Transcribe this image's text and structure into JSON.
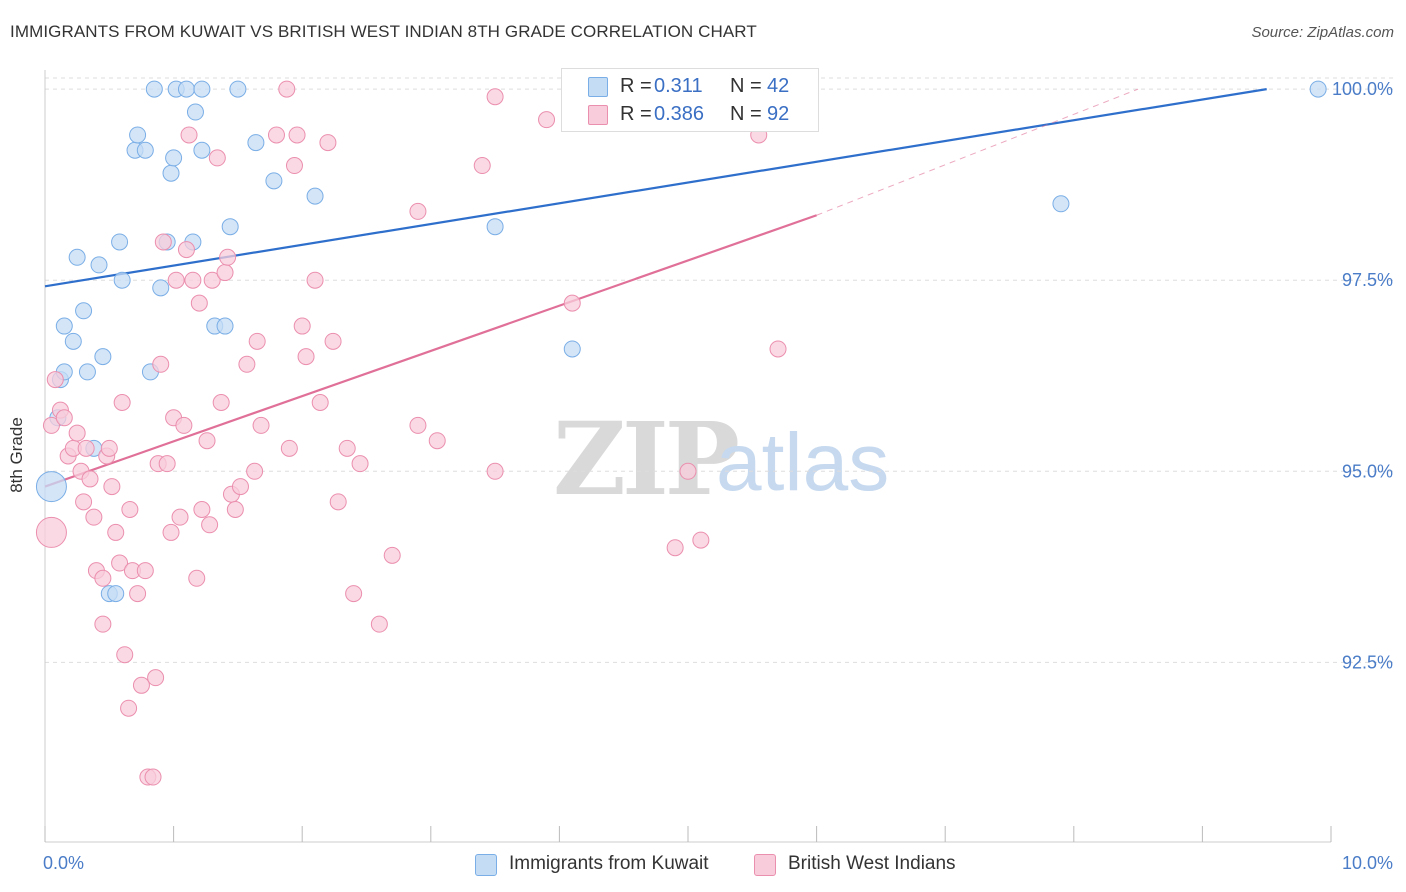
{
  "title": "IMMIGRANTS FROM KUWAIT VS BRITISH WEST INDIAN 8TH GRADE CORRELATION CHART",
  "source": "Source: ZipAtlas.com",
  "watermark": {
    "zip": "ZIP",
    "atlas": "atlas"
  },
  "colors": {
    "blue": "#7aaee6",
    "blue_fill": "#c5dcf5",
    "blue_line": "#2f6fcc",
    "pink": "#eb8fae",
    "pink_fill": "#f8ccdb",
    "pink_line": "#e07098",
    "tick_text": "#4a7cc7",
    "grid": "#dddddd"
  },
  "legend": {
    "rows": [
      {
        "r_label": "R =",
        "r_value": "0.311",
        "n_label": "N =",
        "n_value": "42"
      },
      {
        "r_label": "R =",
        "r_value": "0.386",
        "n_label": "N =",
        "n_value": "92"
      }
    ]
  },
  "bottom_legend": [
    "Immigrants from Kuwait",
    "British West Indians"
  ],
  "chart_data": {
    "type": "scatter",
    "title": "IMMIGRANTS FROM KUWAIT VS BRITISH WEST INDIAN 8TH GRADE CORRELATION CHART",
    "xlabel": "",
    "ylabel": "8th Grade",
    "xlim": [
      0,
      10
    ],
    "ylim": [
      90.15,
      100.25
    ],
    "x_tick_labels": [
      "0.0%",
      "10.0%"
    ],
    "y_ticks": [
      92.5,
      95.0,
      97.5,
      100.0
    ],
    "y_tick_labels": [
      "92.5%",
      "95.0%",
      "97.5%",
      "100.0%"
    ],
    "grid": "horizontal dashed",
    "legend_placement": "top-center",
    "series": [
      {
        "name": "Immigrants from Kuwait",
        "color": "#7aaee6",
        "trend": {
          "x": [
            0,
            9.5
          ],
          "y": [
            97.42,
            100.0
          ]
        },
        "points": [
          [
            0.05,
            94.8
          ],
          [
            0.1,
            95.7
          ],
          [
            0.12,
            96.2
          ],
          [
            0.15,
            96.3
          ],
          [
            0.15,
            96.9
          ],
          [
            0.22,
            96.7
          ],
          [
            0.25,
            97.8
          ],
          [
            0.3,
            97.1
          ],
          [
            0.33,
            96.3
          ],
          [
            0.38,
            95.3
          ],
          [
            0.42,
            97.7
          ],
          [
            0.45,
            96.5
          ],
          [
            0.5,
            93.4
          ],
          [
            0.55,
            93.4
          ],
          [
            0.58,
            98.0
          ],
          [
            0.6,
            97.5
          ],
          [
            0.7,
            99.2
          ],
          [
            0.72,
            99.4
          ],
          [
            0.78,
            99.2
          ],
          [
            0.82,
            96.3
          ],
          [
            0.85,
            100.0
          ],
          [
            0.9,
            97.4
          ],
          [
            0.95,
            98.0
          ],
          [
            0.98,
            98.9
          ],
          [
            1.0,
            99.1
          ],
          [
            1.02,
            100.0
          ],
          [
            1.1,
            100.0
          ],
          [
            1.15,
            98.0
          ],
          [
            1.17,
            99.7
          ],
          [
            1.22,
            99.2
          ],
          [
            1.22,
            100.0
          ],
          [
            1.32,
            96.9
          ],
          [
            1.4,
            96.9
          ],
          [
            1.44,
            98.2
          ],
          [
            1.5,
            100.0
          ],
          [
            1.64,
            99.3
          ],
          [
            1.78,
            98.8
          ],
          [
            2.1,
            98.6
          ],
          [
            3.5,
            98.2
          ],
          [
            4.1,
            96.6
          ],
          [
            7.9,
            98.5
          ],
          [
            9.9,
            100.0
          ]
        ]
      },
      {
        "name": "British West Indians",
        "color": "#eb8fae",
        "trend": {
          "x": [
            0,
            6.0
          ],
          "y": [
            94.8,
            98.35
          ]
        },
        "trend_dashed": {
          "x": [
            6.0,
            8.5
          ],
          "y": [
            98.35,
            100.0
          ]
        },
        "points": [
          [
            0.05,
            94.2
          ],
          [
            0.05,
            95.6
          ],
          [
            0.08,
            96.2
          ],
          [
            0.12,
            95.8
          ],
          [
            0.15,
            95.7
          ],
          [
            0.18,
            95.2
          ],
          [
            0.22,
            95.3
          ],
          [
            0.25,
            95.5
          ],
          [
            0.28,
            95.0
          ],
          [
            0.3,
            94.6
          ],
          [
            0.32,
            95.3
          ],
          [
            0.35,
            94.9
          ],
          [
            0.38,
            94.4
          ],
          [
            0.4,
            93.7
          ],
          [
            0.45,
            93.6
          ],
          [
            0.45,
            93.0
          ],
          [
            0.48,
            95.2
          ],
          [
            0.5,
            95.3
          ],
          [
            0.52,
            94.8
          ],
          [
            0.55,
            94.2
          ],
          [
            0.58,
            93.8
          ],
          [
            0.6,
            95.9
          ],
          [
            0.62,
            92.6
          ],
          [
            0.65,
            91.9
          ],
          [
            0.66,
            94.5
          ],
          [
            0.68,
            93.7
          ],
          [
            0.72,
            93.4
          ],
          [
            0.75,
            92.2
          ],
          [
            0.78,
            93.7
          ],
          [
            0.8,
            91.0
          ],
          [
            0.84,
            91.0
          ],
          [
            0.86,
            92.3
          ],
          [
            0.88,
            95.1
          ],
          [
            0.9,
            96.4
          ],
          [
            0.92,
            98.0
          ],
          [
            0.95,
            95.1
          ],
          [
            0.98,
            94.2
          ],
          [
            1.0,
            95.7
          ],
          [
            1.02,
            97.5
          ],
          [
            1.05,
            94.4
          ],
          [
            1.08,
            95.6
          ],
          [
            1.1,
            97.9
          ],
          [
            1.12,
            99.4
          ],
          [
            1.15,
            97.5
          ],
          [
            1.18,
            93.6
          ],
          [
            1.2,
            97.2
          ],
          [
            1.22,
            94.5
          ],
          [
            1.26,
            95.4
          ],
          [
            1.28,
            94.3
          ],
          [
            1.3,
            97.5
          ],
          [
            1.34,
            99.1
          ],
          [
            1.37,
            95.9
          ],
          [
            1.4,
            97.6
          ],
          [
            1.42,
            97.8
          ],
          [
            1.45,
            94.7
          ],
          [
            1.48,
            94.5
          ],
          [
            1.52,
            94.8
          ],
          [
            1.57,
            96.4
          ],
          [
            1.63,
            95.0
          ],
          [
            1.65,
            96.7
          ],
          [
            1.68,
            95.6
          ],
          [
            1.8,
            99.4
          ],
          [
            1.88,
            100.0
          ],
          [
            1.9,
            95.3
          ],
          [
            1.94,
            99.0
          ],
          [
            1.96,
            99.4
          ],
          [
            2.0,
            96.9
          ],
          [
            2.03,
            96.5
          ],
          [
            2.1,
            97.5
          ],
          [
            2.14,
            95.9
          ],
          [
            2.2,
            99.3
          ],
          [
            2.24,
            96.7
          ],
          [
            2.28,
            94.6
          ],
          [
            2.35,
            95.3
          ],
          [
            2.4,
            93.4
          ],
          [
            2.45,
            95.1
          ],
          [
            2.6,
            93.0
          ],
          [
            2.7,
            93.9
          ],
          [
            2.9,
            98.4
          ],
          [
            2.9,
            95.6
          ],
          [
            3.05,
            95.4
          ],
          [
            3.4,
            99.0
          ],
          [
            3.5,
            95.0
          ],
          [
            3.5,
            99.9
          ],
          [
            3.9,
            99.6
          ],
          [
            4.1,
            97.2
          ],
          [
            4.15,
            100.0
          ],
          [
            4.9,
            94.0
          ],
          [
            5.0,
            95.0
          ],
          [
            5.1,
            94.1
          ],
          [
            5.55,
            99.4
          ],
          [
            5.7,
            96.6
          ]
        ]
      }
    ]
  }
}
